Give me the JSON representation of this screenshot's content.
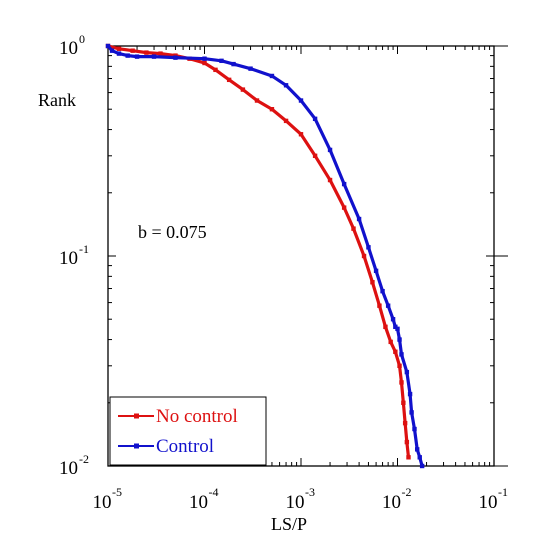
{
  "chart_data": {
    "type": "line",
    "title": "",
    "xlabel": "LS/P",
    "ylabel": "Rank",
    "x_scale": "log",
    "y_scale": "log",
    "xlim": [
      1e-05,
      0.1
    ],
    "ylim": [
      0.01,
      1
    ],
    "grid": false,
    "x_ticks": [
      {
        "base": "10",
        "exp": "-5",
        "value": 1e-05
      },
      {
        "base": "10",
        "exp": "-4",
        "value": 0.0001
      },
      {
        "base": "10",
        "exp": "-3",
        "value": 0.001
      },
      {
        "base": "10",
        "exp": "-2",
        "value": 0.01
      },
      {
        "base": "10",
        "exp": "-1",
        "value": 0.1
      }
    ],
    "y_ticks": [
      {
        "base": "10",
        "exp": "0",
        "value": 1
      },
      {
        "base": "10",
        "exp": "-1",
        "value": 0.1
      },
      {
        "base": "10",
        "exp": "-2",
        "value": 0.01
      }
    ],
    "annotation": "b = 0.075",
    "legend_position": "bottom-left",
    "series": [
      {
        "name": "No control",
        "color": "#dd1111",
        "x": [
          1e-05,
          1.3e-05,
          1.8e-05,
          2.5e-05,
          3.5e-05,
          5e-05,
          7e-05,
          0.0001,
          0.00013,
          0.00018,
          0.00025,
          0.00035,
          0.0005,
          0.0007,
          0.001,
          0.0014,
          0.002,
          0.0028,
          0.0035,
          0.0045,
          0.0055,
          0.0065,
          0.0075,
          0.0085,
          0.0095,
          0.0105,
          0.011,
          0.0115,
          0.012,
          0.0125,
          0.013
        ],
        "y": [
          1.0,
          0.97,
          0.95,
          0.93,
          0.92,
          0.9,
          0.87,
          0.83,
          0.77,
          0.69,
          0.62,
          0.55,
          0.5,
          0.44,
          0.38,
          0.3,
          0.23,
          0.17,
          0.135,
          0.1,
          0.075,
          0.058,
          0.046,
          0.039,
          0.035,
          0.03,
          0.025,
          0.02,
          0.016,
          0.013,
          0.011
        ]
      },
      {
        "name": "Control",
        "color": "#1111cc",
        "x": [
          1e-05,
          1.1e-05,
          1.3e-05,
          1.6e-05,
          2e-05,
          3e-05,
          5e-05,
          0.0001,
          0.00015,
          0.0002,
          0.0003,
          0.0005,
          0.0007,
          0.001,
          0.0014,
          0.002,
          0.0028,
          0.004,
          0.005,
          0.006,
          0.007,
          0.008,
          0.009,
          0.0095,
          0.01,
          0.0105,
          0.011,
          0.0125,
          0.0135,
          0.014,
          0.015,
          0.016,
          0.017,
          0.018
        ],
        "y": [
          1.0,
          0.95,
          0.92,
          0.9,
          0.89,
          0.89,
          0.88,
          0.87,
          0.85,
          0.82,
          0.78,
          0.72,
          0.65,
          0.55,
          0.45,
          0.32,
          0.22,
          0.15,
          0.11,
          0.085,
          0.068,
          0.058,
          0.05,
          0.046,
          0.045,
          0.04,
          0.034,
          0.028,
          0.022,
          0.018,
          0.015,
          0.012,
          0.011,
          0.01
        ]
      }
    ]
  }
}
